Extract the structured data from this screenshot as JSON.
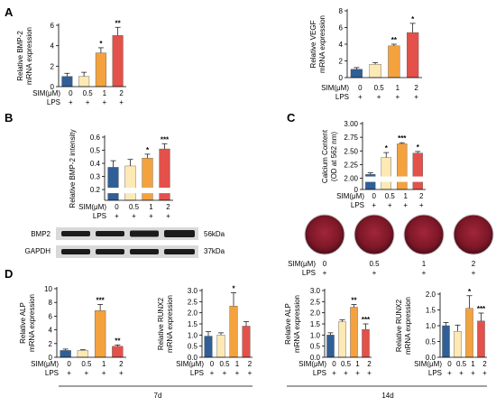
{
  "panel_letters": {
    "A": "A",
    "B": "B",
    "C": "C",
    "D": "D"
  },
  "sim_label": "SIM(μM)",
  "lps_label": "LPS",
  "sim_doses": [
    "0",
    "0.5",
    "1",
    "2"
  ],
  "lps_marks": [
    "+",
    "+",
    "+",
    "+"
  ],
  "colors": [
    "#2f5f96",
    "#fde9b4",
    "#f4a23e",
    "#e3514a"
  ],
  "timepoints": {
    "d7": "7d",
    "d14": "14d"
  },
  "western": {
    "rows": [
      {
        "protein": "BMP2",
        "size": "56kDa"
      },
      {
        "protein": "GAPDH",
        "size": "37kDa"
      }
    ]
  },
  "alizarin": {
    "stain_color": "#7c1727"
  },
  "chart_data": [
    {
      "id": "A1",
      "type": "bar",
      "ylabel": "Relative BMP-2 mRNA expression",
      "categories": [
        "0",
        "0.5",
        "1",
        "2"
      ],
      "values": [
        1.0,
        1.0,
        3.3,
        5.0
      ],
      "errors": [
        0.3,
        0.4,
        0.5,
        0.8
      ],
      "sig": [
        "",
        "",
        "*",
        "**"
      ],
      "ylim": [
        0,
        6
      ],
      "ticks": [
        0,
        2,
        4,
        6
      ]
    },
    {
      "id": "A2",
      "type": "bar",
      "ylabel": "Relative VEGF mRNA expression",
      "categories": [
        "0",
        "0.5",
        "1",
        "2"
      ],
      "values": [
        1.0,
        1.6,
        3.8,
        5.4
      ],
      "errors": [
        0.2,
        0.2,
        0.2,
        1.1
      ],
      "sig": [
        "",
        "",
        "**",
        "*"
      ],
      "ylim": [
        0,
        8
      ],
      "ticks": [
        0,
        2,
        4,
        6,
        8
      ]
    },
    {
      "id": "B",
      "type": "bar",
      "ylabel": "Relative BMP-2 intensity",
      "categories": [
        "0",
        "0.5",
        "1",
        "2"
      ],
      "values": [
        0.37,
        0.38,
        0.44,
        0.51
      ],
      "errors": [
        0.05,
        0.05,
        0.03,
        0.04
      ],
      "sig": [
        "",
        "",
        "*",
        "***"
      ],
      "ylim": [
        0,
        0.6
      ],
      "ticks": [
        0.2,
        0.3,
        0.4,
        0.5,
        0.6
      ],
      "axis_break": [
        0,
        0.2
      ]
    },
    {
      "id": "C",
      "type": "bar",
      "ylabel": "Calcium Content (OD at 562 nm)",
      "categories": [
        "0",
        "0.5",
        "1",
        "2"
      ],
      "values": [
        2.07,
        2.38,
        2.63,
        2.46
      ],
      "errors": [
        0.03,
        0.09,
        0.02,
        0.03
      ],
      "sig": [
        "",
        "*",
        "***",
        "*"
      ],
      "ylim": [
        0,
        3.0
      ],
      "ticks": [
        0.0,
        2.0,
        2.25,
        2.5,
        2.75,
        3.0
      ],
      "tick_labels": [
        "0",
        "2.00",
        "2.25",
        "2.50",
        "2.75",
        "3.00"
      ],
      "axis_break": [
        0.1,
        2.0
      ]
    },
    {
      "id": "D1",
      "type": "bar",
      "ylabel": "Relative ALP mRNA expression",
      "categories": [
        "0",
        "0.5",
        "1",
        "2"
      ],
      "values": [
        1.0,
        1.0,
        6.8,
        1.6
      ],
      "errors": [
        0.2,
        0.1,
        0.9,
        0.2
      ],
      "sig": [
        "",
        "",
        "***",
        "**"
      ],
      "ylim": [
        0,
        10
      ],
      "ticks": [
        0,
        2,
        4,
        6,
        8,
        10
      ]
    },
    {
      "id": "D2",
      "type": "bar",
      "ylabel": "Relative RUNX2 mRNA expression",
      "categories": [
        "0",
        "0.5",
        "1",
        "2"
      ],
      "values": [
        0.95,
        1.0,
        2.3,
        1.4
      ],
      "errors": [
        0.2,
        0.1,
        0.6,
        0.2
      ],
      "sig": [
        "",
        "",
        "*",
        ""
      ],
      "ylim": [
        0,
        3
      ],
      "ticks": [
        0.0,
        0.5,
        1.0,
        1.5,
        2.0,
        2.5,
        3.0
      ],
      "tick_labels": [
        "0.0",
        "0.5",
        "1.0",
        "1.5",
        "2.0",
        "2.5",
        "3.0"
      ]
    },
    {
      "id": "D3",
      "type": "bar",
      "ylabel": "Relative ALP mRNA expression",
      "categories": [
        "0",
        "0.5",
        "1",
        "2"
      ],
      "values": [
        1.0,
        1.6,
        2.25,
        1.25
      ],
      "errors": [
        0.1,
        0.08,
        0.12,
        0.25
      ],
      "sig": [
        "",
        "",
        "**",
        "***"
      ],
      "ylim": [
        0,
        3
      ],
      "ticks": [
        0.0,
        0.5,
        1.0,
        1.5,
        2.0,
        2.5,
        3.0
      ],
      "tick_labels": [
        "0.0",
        "0.5",
        "1.0",
        "1.5",
        "2.0",
        "2.5",
        "3.0"
      ]
    },
    {
      "id": "D4",
      "type": "bar",
      "ylabel": "Relative RUNX2 mRNA expression",
      "categories": [
        "0",
        "0.5",
        "1",
        "2"
      ],
      "values": [
        1.0,
        0.82,
        1.55,
        1.15
      ],
      "errors": [
        0.1,
        0.2,
        0.4,
        0.25
      ],
      "sig": [
        "",
        "",
        "*",
        "***"
      ],
      "ylim": [
        0,
        2.0
      ],
      "ticks": [
        0.0,
        0.5,
        1.0,
        1.5,
        2.0
      ],
      "tick_labels": [
        "0.0",
        "0.5",
        "1.0",
        "1.5",
        "2.0"
      ]
    }
  ]
}
